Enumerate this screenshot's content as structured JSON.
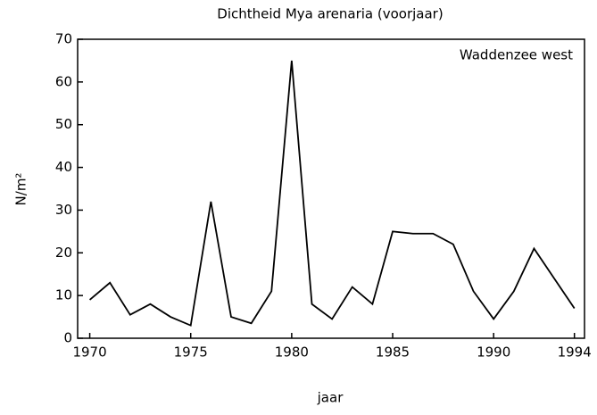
{
  "chart_data": {
    "type": "line",
    "title": "Dichtheid Mya arenaria (voorjaar)",
    "annotation": "Waddenzee west",
    "x_label": "jaar",
    "y_label": "N/m²",
    "x": [
      1970,
      1971,
      1972,
      1973,
      1974,
      1975,
      1976,
      1977,
      1978,
      1979,
      1980,
      1981,
      1982,
      1983,
      1984,
      1985,
      1986,
      1987,
      1988,
      1989,
      1990,
      1991,
      1992,
      1993,
      1994
    ],
    "series": [
      {
        "color": "#000000",
        "values": [
          9,
          13,
          5.5,
          8,
          5,
          3,
          32,
          5,
          3.5,
          11,
          65,
          8,
          4.5,
          12,
          8,
          25,
          24.5,
          24.5,
          22,
          11,
          4.5,
          11,
          21,
          14,
          7
        ]
      }
    ],
    "xlim": [
      1969.4,
      1994.5
    ],
    "xticks": [
      1970,
      1975,
      1980,
      1985,
      1990,
      1994
    ],
    "ylim": [
      0,
      70
    ],
    "yticks": [
      0,
      10,
      20,
      30,
      40,
      50,
      60,
      70
    ],
    "grid": false
  }
}
